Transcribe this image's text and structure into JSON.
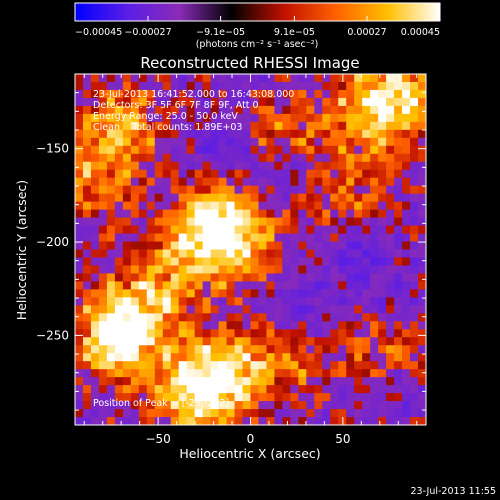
{
  "chart_data": {
    "type": "heatmap",
    "title": "Reconstructed RHESSI Image",
    "xlabel": "Heliocentric X (arcsec)",
    "ylabel": "Heliocentric Y (arcsec)",
    "xlim": [
      -95,
      95
    ],
    "ylim": [
      -298,
      -110
    ],
    "xticks": [
      -50,
      0,
      50
    ],
    "yticks": [
      -150,
      -200,
      -250
    ],
    "xtick_labels": [
      "−50",
      "0",
      "50"
    ],
    "ytick_labels": [
      "−150",
      "−200",
      "−250"
    ],
    "colorbar": {
      "min": -0.00045,
      "max": 0.00045,
      "ticks": [
        -0.00045,
        -0.00027,
        -9.1e-05,
        9.1e-05,
        0.00027,
        0.00045
      ],
      "tick_labels": [
        "−0.00045",
        "−0.00027",
        "−9.1e−05",
        "9.1e−05",
        "0.00027",
        "0.00045"
      ],
      "unit_label": "(photons cm⁻² s⁻¹ asec⁻²)",
      "colors": [
        "#0000ff",
        "#5a1ee6",
        "#8a2bb8",
        "#000000",
        "#c01000",
        "#ff6000",
        "#ffc000",
        "#ffffff"
      ]
    },
    "info_lines": [
      "23-Jul-2013 16:41:52.000 to 16:43:08.000",
      "Detectors: 3F 5F 6F 7F 8F 9F, Att 0",
      "Energy Range: 25.0 - 50.0 keV",
      "Clean    Total counts: 1.89E+03"
    ],
    "peak_label": "Position of Peak = [-25,-282]",
    "peak": {
      "x": -25,
      "y": -282
    },
    "intensity_sources": [
      {
        "x": -30,
        "y": -280,
        "amp": 1.0
      },
      {
        "x": -10,
        "y": -268,
        "amp": 0.7
      },
      {
        "x": -65,
        "y": -240,
        "amp": 0.8
      },
      {
        "x": -75,
        "y": -255,
        "amp": 0.7
      },
      {
        "x": -20,
        "y": -190,
        "amp": 0.85
      },
      {
        "x": -5,
        "y": -200,
        "amp": 0.6
      },
      {
        "x": -70,
        "y": -140,
        "amp": 0.7
      },
      {
        "x": -85,
        "y": -170,
        "amp": 0.5
      },
      {
        "x": 65,
        "y": -130,
        "amp": 0.75
      },
      {
        "x": 85,
        "y": -120,
        "amp": 0.6
      },
      {
        "x": 20,
        "y": -140,
        "amp": 0.45
      },
      {
        "x": 55,
        "y": -175,
        "amp": 0.45
      },
      {
        "x": 75,
        "y": -255,
        "amp": 0.45
      },
      {
        "x": 25,
        "y": -265,
        "amp": 0.4
      },
      {
        "x": -40,
        "y": -215,
        "amp": 0.5
      }
    ],
    "negative_sources": [
      {
        "x": -15,
        "y": -150,
        "amp": 0.7
      },
      {
        "x": 15,
        "y": -165,
        "amp": 0.5
      },
      {
        "x": 60,
        "y": -205,
        "amp": 0.8
      },
      {
        "x": 30,
        "y": -235,
        "amp": 0.55
      },
      {
        "x": 75,
        "y": -230,
        "amp": 0.5
      },
      {
        "x": 80,
        "y": -285,
        "amp": 0.4
      }
    ]
  },
  "timestamp": "23-Jul-2013 11:55"
}
